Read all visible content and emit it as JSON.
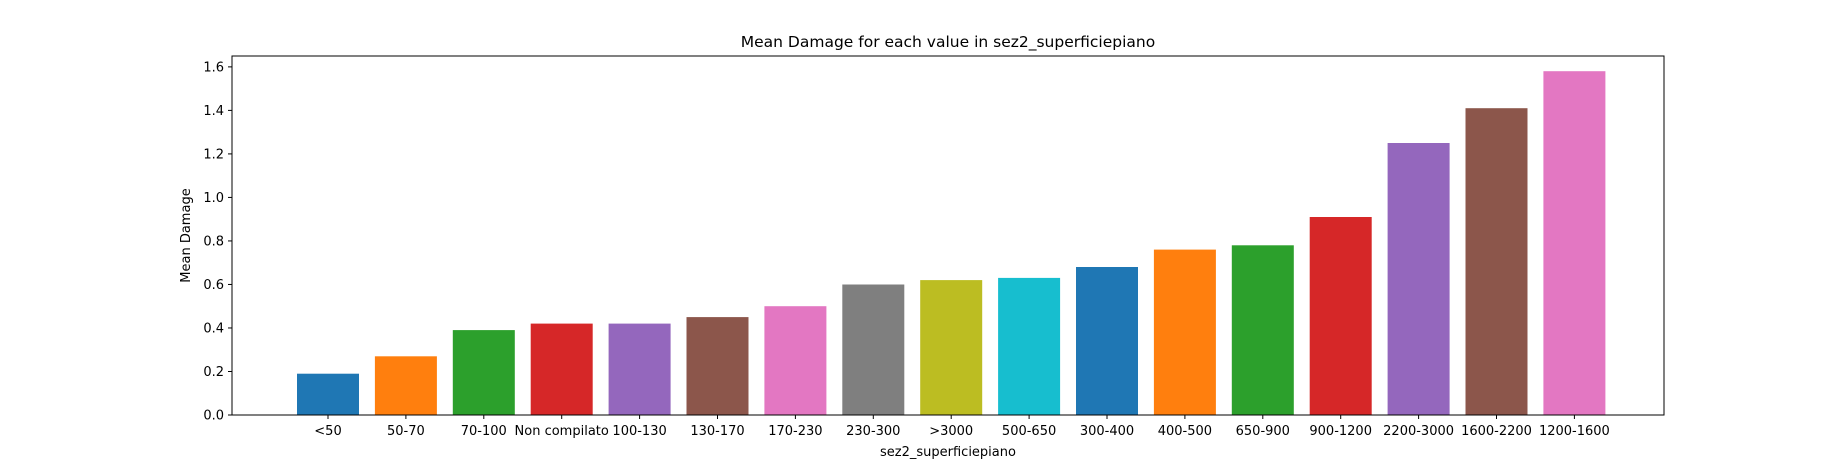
{
  "chart_data": {
    "type": "bar",
    "title": "Mean Damage for each value in sez2_superficiepiano",
    "xlabel": "sez2_superficiepiano",
    "ylabel": "Mean Damage",
    "ylim": [
      0,
      1.65
    ],
    "yticks": [
      0.0,
      0.2,
      0.4,
      0.6,
      0.8,
      1.0,
      1.2,
      1.4,
      1.6
    ],
    "ytick_labels": [
      "0.0",
      "0.2",
      "0.4",
      "0.6",
      "0.8",
      "1.0",
      "1.2",
      "1.4",
      "1.6"
    ],
    "grid": false,
    "categories": [
      "<50",
      "50-70",
      "70-100",
      "Non compilato",
      "100-130",
      "130-170",
      "170-230",
      "230-300",
      ">3000",
      "500-650",
      "300-400",
      "400-500",
      "650-900",
      "900-1200",
      "2200-3000",
      "1600-2200",
      "1200-1600"
    ],
    "values": [
      0.19,
      0.27,
      0.39,
      0.42,
      0.42,
      0.45,
      0.5,
      0.6,
      0.62,
      0.63,
      0.68,
      0.76,
      0.78,
      0.91,
      1.25,
      1.41,
      1.58
    ],
    "colors": [
      "#1f77b4",
      "#ff7f0e",
      "#2ca02c",
      "#d62728",
      "#9467bd",
      "#8c564b",
      "#e377c2",
      "#7f7f7f",
      "#bcbd22",
      "#17becf",
      "#1f77b4",
      "#ff7f0e",
      "#2ca02c",
      "#d62728",
      "#9467bd",
      "#8c564b",
      "#e377c2"
    ]
  }
}
